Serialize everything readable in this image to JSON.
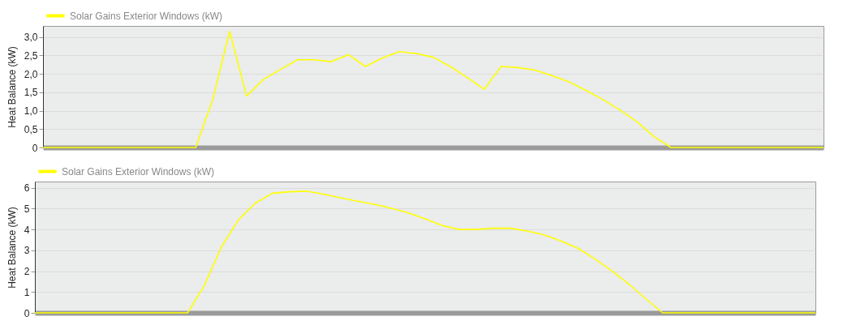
{
  "chart_data": [
    {
      "type": "line",
      "ylabel": "Heat Balance (kW)",
      "categories": [
        null,
        null,
        null,
        null,
        null,
        null,
        null,
        null,
        null,
        null,
        null,
        null,
        null,
        null,
        null,
        null,
        null,
        null,
        null,
        null,
        null,
        null,
        null,
        null,
        null,
        null,
        null,
        null,
        null,
        null,
        null,
        null,
        null,
        null,
        null,
        null,
        null,
        null,
        null,
        null,
        null,
        null,
        null,
        null,
        null,
        null,
        null
      ],
      "series": [
        {
          "name": "Solar Gains Exterior Windows (kW)",
          "color": "#ffff00",
          "values": [
            0,
            0,
            0,
            0,
            0,
            0,
            0,
            0,
            0,
            0,
            1.3,
            3.15,
            1.4,
            1.85,
            2.12,
            2.38,
            2.38,
            2.33,
            2.52,
            2.2,
            2.43,
            2.6,
            2.55,
            2.45,
            2.2,
            1.9,
            1.58,
            2.2,
            2.17,
            2.1,
            1.95,
            1.78,
            1.55,
            1.3,
            1.02,
            0.7,
            0.3,
            0,
            0,
            0,
            0,
            0,
            0,
            0,
            0,
            0,
            0
          ]
        }
      ],
      "ylim": [
        0,
        3.3
      ],
      "yticks": [
        0,
        {
          "value": 0.5,
          "label": "0,5"
        },
        {
          "value": 1,
          "label": "1,0"
        },
        {
          "value": 1.5,
          "label": "1,5"
        },
        {
          "value": 2,
          "label": "2,0"
        },
        {
          "value": 2.5,
          "label": "2,5"
        },
        {
          "value": 3,
          "label": "3,0"
        }
      ],
      "grid": "y",
      "legend": "top left"
    },
    {
      "type": "line",
      "ylabel": "Heat Balance (kW)",
      "categories": [
        null,
        null,
        null,
        null,
        null,
        null,
        null,
        null,
        null,
        null,
        null,
        null,
        null,
        null,
        null,
        null,
        null,
        null,
        null,
        null,
        null,
        null,
        null,
        null,
        null,
        null,
        null,
        null,
        null,
        null,
        null,
        null,
        null,
        null,
        null,
        null,
        null,
        null,
        null,
        null,
        null,
        null,
        null,
        null,
        null,
        null,
        null
      ],
      "series": [
        {
          "name": "Solar Gains Exterior Windows (kW)",
          "color": "#ffff00",
          "values": [
            0,
            0,
            0,
            0,
            0,
            0,
            0,
            0,
            0,
            0,
            1.33,
            3.17,
            4.47,
            5.27,
            5.74,
            5.81,
            5.84,
            5.7,
            5.52,
            5.36,
            5.21,
            5.02,
            4.8,
            4.51,
            4.19,
            4.0,
            4.0,
            4.06,
            4.06,
            3.93,
            3.74,
            3.45,
            3.1,
            2.59,
            2.02,
            1.38,
            0.68,
            0,
            0,
            0,
            0,
            0,
            0,
            0,
            0,
            0,
            0
          ]
        }
      ],
      "ylim": [
        0,
        6.3
      ],
      "yticks": [
        0,
        1,
        2,
        3,
        4,
        5,
        6
      ],
      "grid": "y",
      "legend": "top left"
    }
  ]
}
